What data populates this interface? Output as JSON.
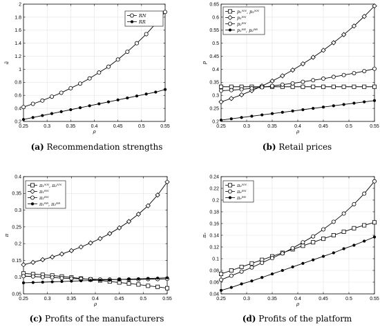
{
  "chart_data": [
    {
      "type": "line",
      "caption_tag": "(a)",
      "caption": "Recommendation strengths",
      "xlabel": "ρ",
      "ylabel": "ā",
      "xlim": [
        0.25,
        0.55
      ],
      "ylim": [
        0.2,
        2.0
      ],
      "xticks": [
        0.25,
        0.3,
        0.35,
        0.4,
        0.45,
        0.5,
        0.55
      ],
      "xtick_labels": [
        "0.25",
        "0.3",
        "0.35",
        "0.4",
        "0.45",
        "0.5",
        "0.55"
      ],
      "yticks": [
        0.2,
        0.4,
        0.6,
        0.8,
        1.0,
        1.2,
        1.4,
        1.6,
        1.8,
        2.0
      ],
      "ytick_labels": [
        "0.2",
        "0.4",
        "0.6",
        "0.8",
        "1",
        "1.2",
        "1.4",
        "1.6",
        "1.8",
        "2"
      ],
      "legend_position": "top-right",
      "x": [
        0.25,
        0.27,
        0.29,
        0.31,
        0.33,
        0.35,
        0.37,
        0.39,
        0.41,
        0.43,
        0.45,
        0.47,
        0.49,
        0.51,
        0.53,
        0.55
      ],
      "series": [
        {
          "name": "RN",
          "marker": "circle",
          "values": [
            0.42,
            0.47,
            0.52,
            0.58,
            0.64,
            0.71,
            0.78,
            0.86,
            0.95,
            1.04,
            1.15,
            1.27,
            1.4,
            1.54,
            1.7,
            1.88
          ]
        },
        {
          "name": "RR",
          "marker": "dot",
          "values": [
            0.23,
            0.26,
            0.29,
            0.32,
            0.35,
            0.38,
            0.41,
            0.44,
            0.47,
            0.5,
            0.53,
            0.56,
            0.59,
            0.62,
            0.65,
            0.69
          ]
        }
      ]
    },
    {
      "type": "line",
      "caption_tag": "(b)",
      "caption": "Retail prices",
      "xlabel": "ρ",
      "ylabel": "p",
      "xlim": [
        0.25,
        0.55
      ],
      "ylim": [
        0.2,
        0.65
      ],
      "xticks": [
        0.25,
        0.3,
        0.35,
        0.4,
        0.45,
        0.5,
        0.55
      ],
      "xtick_labels": [
        "0.25",
        "0.3",
        "0.35",
        "0.4",
        "0.45",
        "0.5",
        "0.55"
      ],
      "yticks": [
        0.2,
        0.25,
        0.3,
        0.35,
        0.4,
        0.45,
        0.5,
        0.55,
        0.6,
        0.65
      ],
      "ytick_labels": [
        "0.2",
        "0.25",
        "0.3",
        "0.35",
        "0.4",
        "0.45",
        "0.5",
        "0.55",
        "0.6",
        "0.65"
      ],
      "legend_position": "top-left",
      "x": [
        0.25,
        0.27,
        0.29,
        0.31,
        0.33,
        0.35,
        0.37,
        0.39,
        0.41,
        0.43,
        0.45,
        0.47,
        0.49,
        0.51,
        0.53,
        0.55
      ],
      "series": [
        {
          "name": "p₁ᴺᴺ, p₂ᴺᴺ",
          "marker": "square",
          "values": [
            0.333,
            0.333,
            0.333,
            0.333,
            0.333,
            0.333,
            0.333,
            0.333,
            0.333,
            0.333,
            0.333,
            0.333,
            0.333,
            0.333,
            0.333,
            0.333
          ]
        },
        {
          "name": "p₁ᴿᴺ",
          "marker": "diamond",
          "values": [
            0.275,
            0.288,
            0.302,
            0.318,
            0.336,
            0.355,
            0.375,
            0.397,
            0.421,
            0.446,
            0.473,
            0.502,
            0.533,
            0.566,
            0.603,
            0.643
          ]
        },
        {
          "name": "p₂ᴿᴺ",
          "marker": "circle",
          "values": [
            0.318,
            0.32,
            0.323,
            0.327,
            0.331,
            0.336,
            0.341,
            0.346,
            0.352,
            0.358,
            0.364,
            0.371,
            0.378,
            0.385,
            0.393,
            0.402
          ]
        },
        {
          "name": "p₁ᴿᴿ, p₂ᴿᴿ",
          "marker": "dot",
          "values": [
            0.205,
            0.21,
            0.215,
            0.22,
            0.225,
            0.23,
            0.235,
            0.24,
            0.245,
            0.25,
            0.255,
            0.26,
            0.265,
            0.27,
            0.275,
            0.28
          ]
        }
      ]
    },
    {
      "type": "line",
      "caption_tag": "(c)",
      "caption": "Profits of the manufacturers",
      "xlabel": "ρ",
      "ylabel": "π",
      "xlim": [
        0.25,
        0.55
      ],
      "ylim": [
        0.05,
        0.4
      ],
      "xticks": [
        0.25,
        0.3,
        0.35,
        0.4,
        0.45,
        0.5,
        0.55
      ],
      "xtick_labels": [
        "0.25",
        "0.3",
        "0.35",
        "0.4",
        "0.45",
        "0.5",
        "0.55"
      ],
      "yticks": [
        0.05,
        0.1,
        0.15,
        0.2,
        0.25,
        0.3,
        0.35,
        0.4
      ],
      "ytick_labels": [
        "0.05",
        "0.1",
        "0.15",
        "0.2",
        "0.25",
        "0.3",
        "0.35",
        "0.4"
      ],
      "legend_position": "top-left",
      "x": [
        0.25,
        0.27,
        0.29,
        0.31,
        0.33,
        0.35,
        0.37,
        0.39,
        0.41,
        0.43,
        0.45,
        0.47,
        0.49,
        0.51,
        0.53,
        0.55
      ],
      "series": [
        {
          "name": "π₁ᴺᴺ, π₂ᴺᴺ",
          "marker": "square",
          "values": [
            0.111,
            0.109,
            0.107,
            0.105,
            0.102,
            0.099,
            0.096,
            0.093,
            0.09,
            0.087,
            0.084,
            0.081,
            0.078,
            0.074,
            0.071,
            0.067
          ]
        },
        {
          "name": "π₁ᴿᴺ",
          "marker": "diamond",
          "values": [
            0.137,
            0.144,
            0.152,
            0.16,
            0.169,
            0.179,
            0.19,
            0.202,
            0.215,
            0.23,
            0.247,
            0.266,
            0.288,
            0.313,
            0.345,
            0.384
          ]
        },
        {
          "name": "π₂ᴿᴺ",
          "marker": "circle",
          "values": [
            0.103,
            0.102,
            0.1,
            0.099,
            0.097,
            0.096,
            0.095,
            0.094,
            0.093,
            0.093,
            0.093,
            0.093,
            0.093,
            0.094,
            0.094,
            0.095
          ]
        },
        {
          "name": "π₁ᴿᴿ, π₂ᴿᴿ",
          "marker": "dot",
          "values": [
            0.083,
            0.084,
            0.085,
            0.086,
            0.087,
            0.088,
            0.089,
            0.09,
            0.091,
            0.092,
            0.093,
            0.094,
            0.095,
            0.096,
            0.097,
            0.098
          ]
        }
      ]
    },
    {
      "type": "line",
      "caption_tag": "(d)",
      "caption": "Profits of the platform",
      "xlabel": "ρ",
      "ylabel": "πₑ",
      "xlim": [
        0.25,
        0.55
      ],
      "ylim": [
        0.04,
        0.24
      ],
      "xticks": [
        0.25,
        0.3,
        0.35,
        0.4,
        0.45,
        0.5,
        0.55
      ],
      "xtick_labels": [
        "0.25",
        "0.3",
        "0.35",
        "0.4",
        "0.45",
        "0.5",
        "0.55"
      ],
      "yticks": [
        0.04,
        0.06,
        0.08,
        0.1,
        0.12,
        0.14,
        0.16,
        0.18,
        0.2,
        0.22,
        0.24
      ],
      "ytick_labels": [
        "0.04",
        "0.06",
        "0.08",
        "0.1",
        "0.12",
        "0.14",
        "0.16",
        "0.18",
        "0.2",
        "0.22",
        "0.24"
      ],
      "legend_position": "top-left",
      "x": [
        0.25,
        0.27,
        0.29,
        0.31,
        0.33,
        0.35,
        0.37,
        0.39,
        0.41,
        0.43,
        0.45,
        0.47,
        0.49,
        0.51,
        0.53,
        0.55
      ],
      "series": [
        {
          "name": "πₑᴺᴺ",
          "marker": "square",
          "values": [
            0.074,
            0.08,
            0.086,
            0.092,
            0.098,
            0.104,
            0.11,
            0.116,
            0.122,
            0.128,
            0.134,
            0.14,
            0.146,
            0.152,
            0.157,
            0.162
          ]
        },
        {
          "name": "πₑᴿᴺ",
          "marker": "circle",
          "values": [
            0.064,
            0.071,
            0.078,
            0.085,
            0.093,
            0.101,
            0.109,
            0.118,
            0.128,
            0.138,
            0.15,
            0.163,
            0.177,
            0.193,
            0.211,
            0.232
          ]
        },
        {
          "name": "πₑᴿᴿ",
          "marker": "dot",
          "values": [
            0.046,
            0.051,
            0.057,
            0.062,
            0.068,
            0.074,
            0.08,
            0.086,
            0.092,
            0.098,
            0.104,
            0.11,
            0.117,
            0.123,
            0.13,
            0.137
          ]
        }
      ]
    }
  ]
}
